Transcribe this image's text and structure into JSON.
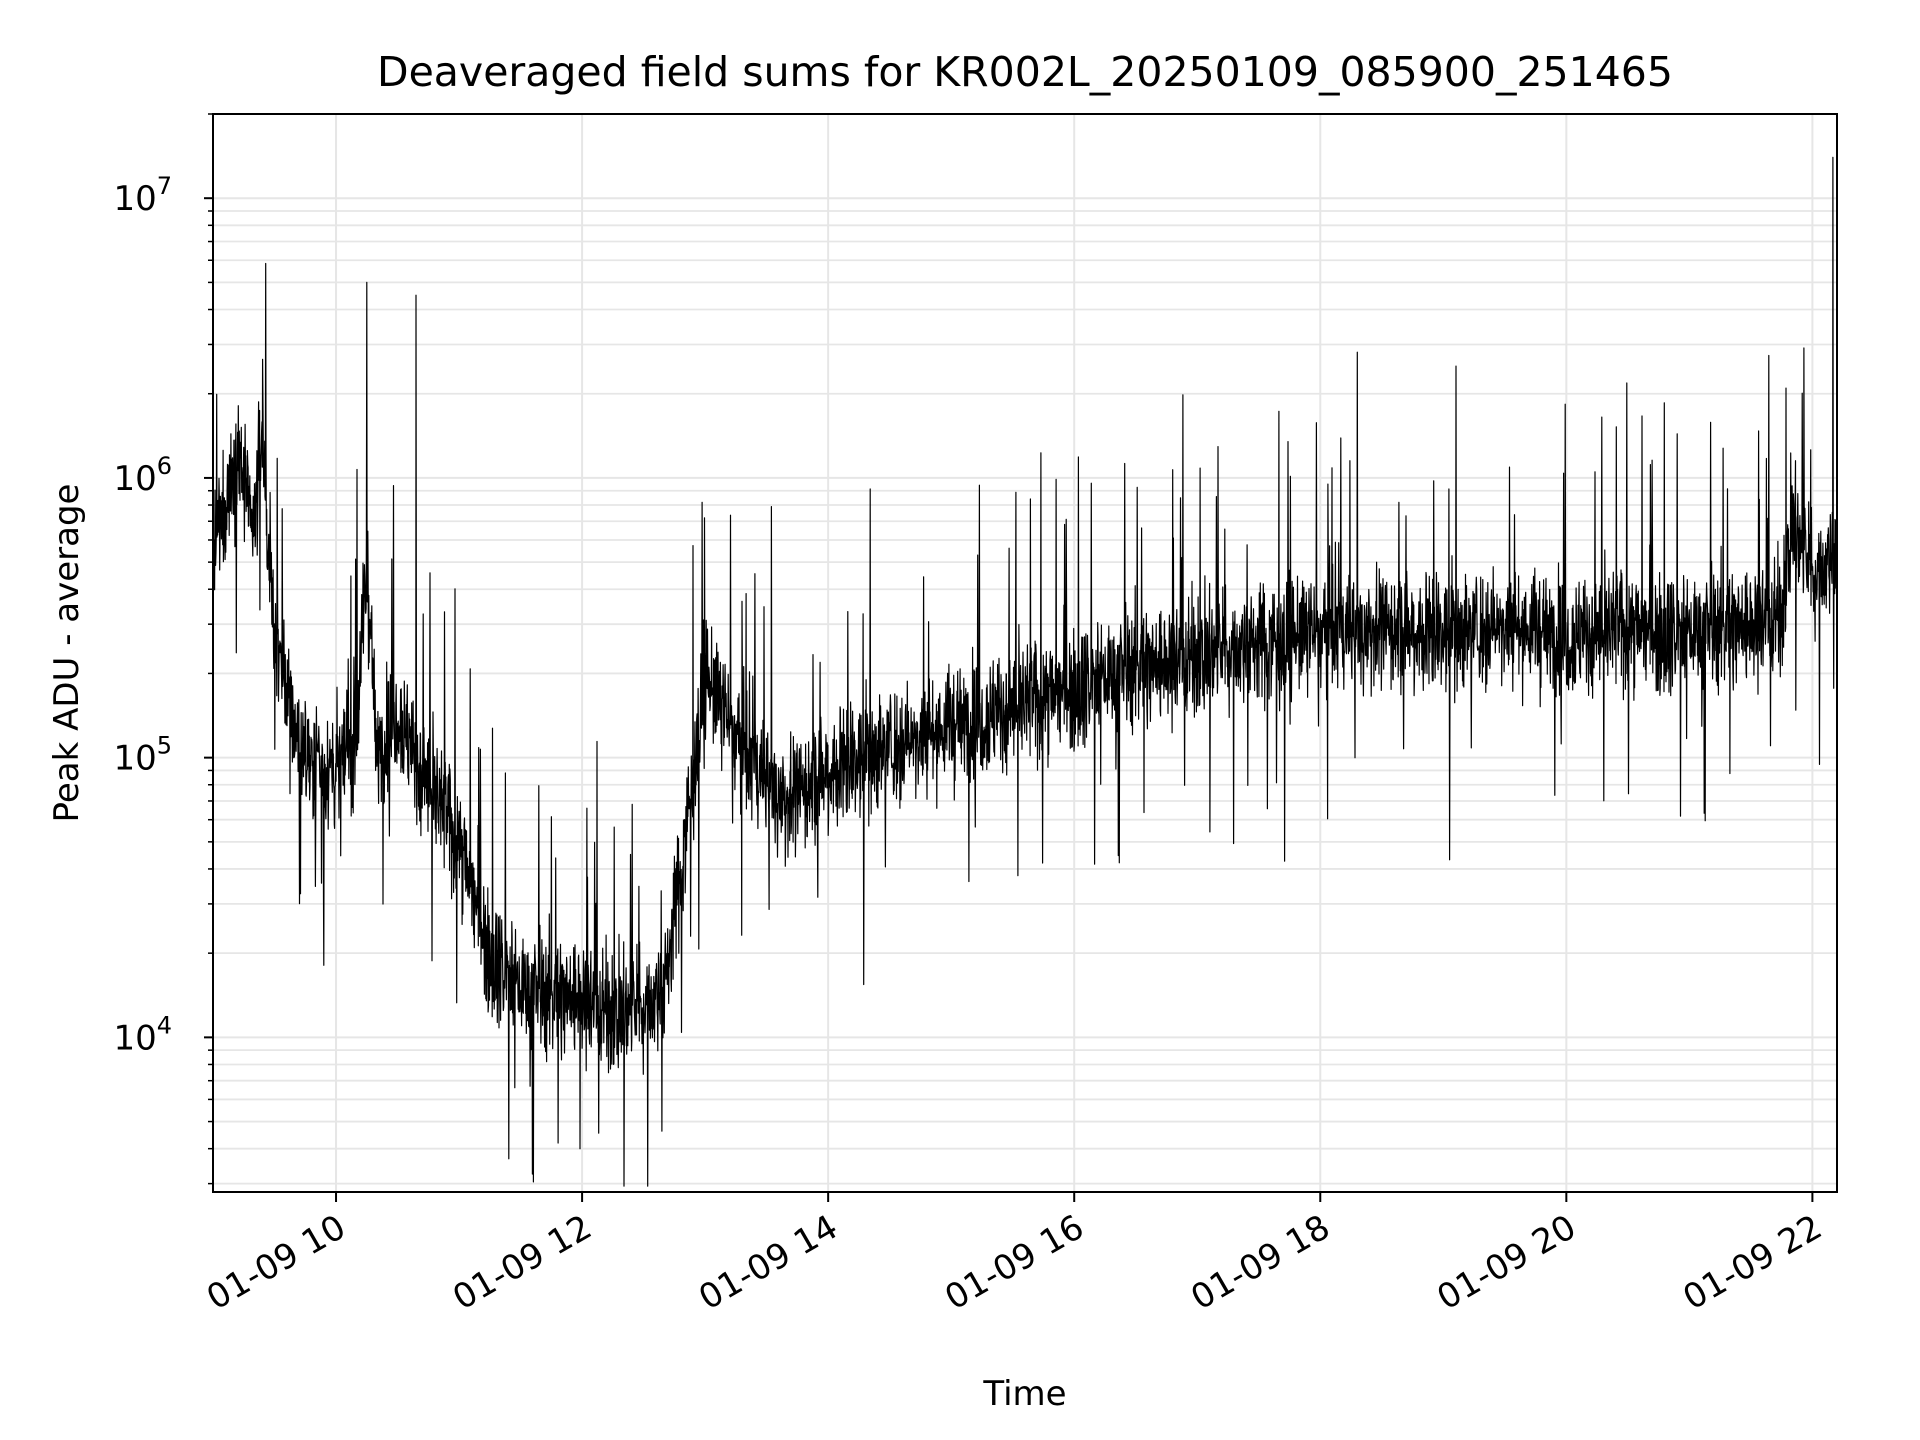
{
  "chart_data": {
    "type": "line",
    "title": "Deaveraged field sums for KR002L_20250109_085900_251465",
    "xlabel": "Time",
    "ylabel": "Peak ADU - average",
    "yscale": "log",
    "ylim": [
      2800,
      20000000
    ],
    "xlim": [
      "01-09 09:00",
      "01-09 22:12"
    ],
    "x_ticks": [
      "01-09 10",
      "01-09 12",
      "01-09 14",
      "01-09 16",
      "01-09 18",
      "01-09 20",
      "01-09 22"
    ],
    "y_ticks": [
      {
        "base": "10",
        "exp": "4"
      },
      {
        "base": "10",
        "exp": "5"
      },
      {
        "base": "10",
        "exp": "6"
      },
      {
        "base": "10",
        "exp": "7"
      }
    ],
    "grid": true,
    "line_color": "#000000",
    "grid_color": "#e6e6e6",
    "series": [
      {
        "x": [
          "01-09 09:00",
          "01-09 09:12",
          "01-09 09:20",
          "01-09 09:24",
          "01-09 09:30",
          "01-09 09:35",
          "01-09 09:45",
          "01-09 10:00",
          "01-09 10:10",
          "01-09 10:15",
          "01-09 10:20",
          "01-09 10:30",
          "01-09 10:38",
          "01-09 10:45",
          "01-09 11:00",
          "01-09 11:15",
          "01-09 11:30",
          "01-09 11:45",
          "01-09 12:00",
          "01-09 12:15",
          "01-09 12:30",
          "01-09 12:40",
          "01-09 12:50",
          "01-09 13:00",
          "01-09 13:20",
          "01-09 13:40",
          "01-09 14:00",
          "01-09 14:30",
          "01-09 15:00",
          "01-09 15:30",
          "01-09 16:00",
          "01-09 16:30",
          "01-09 17:00",
          "01-09 17:30",
          "01-09 18:00",
          "01-09 18:30",
          "01-09 19:00",
          "01-09 19:30",
          "01-09 20:00",
          "01-09 20:30",
          "01-09 21:00",
          "01-09 21:30",
          "01-09 21:45",
          "01-09 21:50",
          "01-09 22:00",
          "01-09 22:07",
          "01-09 22:12"
        ],
        "values": [
          500000,
          1300000,
          600000,
          1500000,
          250000,
          180000,
          100000,
          90000,
          120000,
          500000,
          100000,
          150000,
          100000,
          80000,
          50000,
          20000,
          15000,
          14000,
          14000,
          12000,
          13000,
          15000,
          50000,
          200000,
          100000,
          70000,
          90000,
          110000,
          130000,
          150000,
          180000,
          210000,
          230000,
          260000,
          280000,
          290000,
          280000,
          300000,
          270000,
          290000,
          280000,
          300000,
          320000,
          700000,
          450000,
          500000,
          600000
        ]
      }
    ],
    "annotations": [
      {
        "x": "01-09 10:15",
        "y": 5000000
      },
      {
        "x": "01-09 10:39",
        "y": 4500000
      },
      {
        "x": "01-09 11:59",
        "y": 4000
      },
      {
        "x": "01-09 22:10",
        "y": 14000000
      }
    ]
  }
}
